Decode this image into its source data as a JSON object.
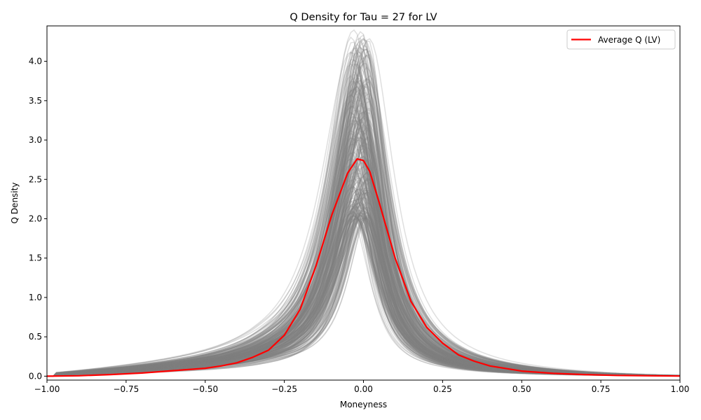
{
  "chart_data": {
    "type": "line",
    "title": "Q Density for Tau = 27 for LV",
    "xlabel": "Moneyness",
    "ylabel": "Q Density",
    "xlim": [
      -1.0,
      1.0
    ],
    "ylim": [
      -0.05,
      4.45
    ],
    "x_ticks": [
      -1.0,
      -0.75,
      -0.5,
      -0.25,
      0.0,
      0.25,
      0.5,
      0.75,
      1.0
    ],
    "x_tick_labels": [
      "−1.00",
      "−0.75",
      "−0.50",
      "−0.25",
      "0.00",
      "0.25",
      "0.50",
      "0.75",
      "1.00"
    ],
    "y_ticks": [
      0.0,
      0.5,
      1.0,
      1.5,
      2.0,
      2.5,
      3.0,
      3.5,
      4.0
    ],
    "y_tick_labels": [
      "0.0",
      "0.5",
      "1.0",
      "1.5",
      "2.0",
      "2.5",
      "3.0",
      "3.5",
      "4.0"
    ],
    "grid": false,
    "legend_position": "top-right",
    "colors": {
      "average": "#ff0000",
      "samples": "#808080"
    },
    "series": [
      {
        "name": "Average Q (LV)",
        "x": [
          -1.0,
          -0.9,
          -0.8,
          -0.7,
          -0.6,
          -0.5,
          -0.45,
          -0.4,
          -0.35,
          -0.3,
          -0.25,
          -0.2,
          -0.15,
          -0.1,
          -0.05,
          -0.02,
          0.0,
          0.02,
          0.05,
          0.1,
          0.15,
          0.2,
          0.25,
          0.3,
          0.35,
          0.4,
          0.5,
          0.6,
          0.7,
          0.8,
          0.9,
          1.0
        ],
        "values": [
          0.0,
          0.005,
          0.02,
          0.04,
          0.07,
          0.1,
          0.13,
          0.17,
          0.24,
          0.33,
          0.52,
          0.85,
          1.4,
          2.05,
          2.58,
          2.76,
          2.74,
          2.6,
          2.2,
          1.5,
          0.95,
          0.62,
          0.42,
          0.27,
          0.19,
          0.13,
          0.065,
          0.035,
          0.02,
          0.01,
          0.005,
          0.002
        ]
      }
    ],
    "sample_curves": {
      "count": 300,
      "peak_range": [
        2.0,
        4.4
      ],
      "center_range": [
        -0.04,
        0.02
      ],
      "alpha": 0.25
    }
  }
}
